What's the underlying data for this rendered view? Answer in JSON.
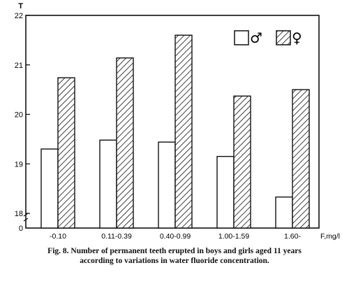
{
  "chart_data": {
    "type": "bar",
    "categories": [
      "-0.10",
      "0.11-0.39",
      "0.40-0.99",
      "1.00-1.59",
      "1.60-"
    ],
    "series": [
      {
        "name": "♂",
        "values": [
          19.3,
          19.48,
          19.44,
          19.15,
          18.33
        ]
      },
      {
        "name": "♀",
        "values": [
          20.74,
          21.14,
          21.6,
          20.37,
          20.5
        ]
      }
    ],
    "ylabel": "T",
    "xlabel": "F,mg/l",
    "ylim": [
      18,
      22
    ],
    "yticks": [
      "18",
      "19",
      "20",
      "21",
      "22"
    ],
    "y_break_label": "0",
    "legend_position": "top-right",
    "grid": false,
    "colors": {
      "axis": "#111111",
      "bar_fill_1": "#ffffff",
      "hatch": "#111111"
    }
  },
  "caption": {
    "line1": "Fig. 8. Number of permanent teeth erupted in boys and girls aged 11 years",
    "line2": "according to variations in water fluoride concentration."
  }
}
